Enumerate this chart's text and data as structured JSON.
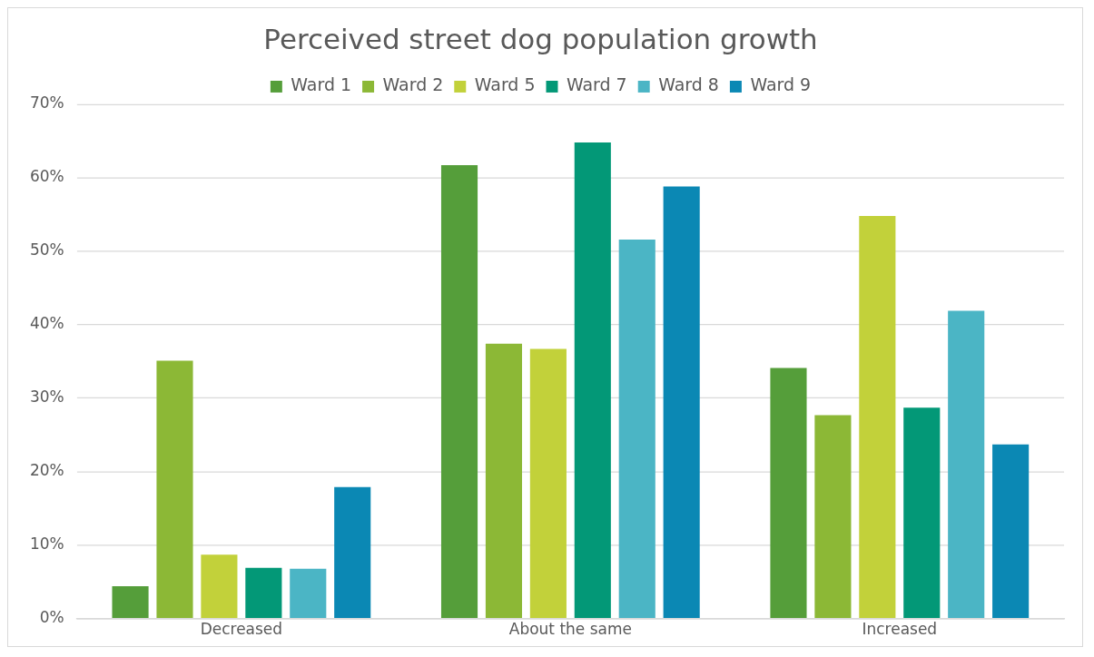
{
  "chart_data": {
    "type": "bar",
    "title": "Perceived street dog population growth",
    "categories": [
      "Decreased",
      "About the same",
      "Increased"
    ],
    "series": [
      {
        "name": "Ward 1",
        "color": "#559e3a",
        "values": [
          4.4,
          61.7,
          34.1
        ]
      },
      {
        "name": "Ward 2",
        "color": "#8cb836",
        "values": [
          35.1,
          37.4,
          27.7
        ]
      },
      {
        "name": "Ward 5",
        "color": "#c2d13a",
        "values": [
          8.7,
          36.7,
          54.8
        ]
      },
      {
        "name": "Ward 7",
        "color": "#039877",
        "values": [
          6.9,
          64.8,
          28.7
        ]
      },
      {
        "name": "Ward 8",
        "color": "#4bb5c5",
        "values": [
          6.8,
          51.6,
          41.9
        ]
      },
      {
        "name": "Ward 9",
        "color": "#0b88b4",
        "values": [
          17.9,
          58.8,
          23.7
        ]
      }
    ],
    "ylim": [
      0,
      70
    ],
    "yticks": [
      {
        "value": 0,
        "label": "0%"
      },
      {
        "value": 10,
        "label": "10%"
      },
      {
        "value": 20,
        "label": "20%"
      },
      {
        "value": 30,
        "label": "30%"
      },
      {
        "value": 40,
        "label": "40%"
      },
      {
        "value": 50,
        "label": "50%"
      },
      {
        "value": 60,
        "label": "60%"
      },
      {
        "value": 70,
        "label": "70%"
      }
    ],
    "grid": "y",
    "legend": "top"
  }
}
